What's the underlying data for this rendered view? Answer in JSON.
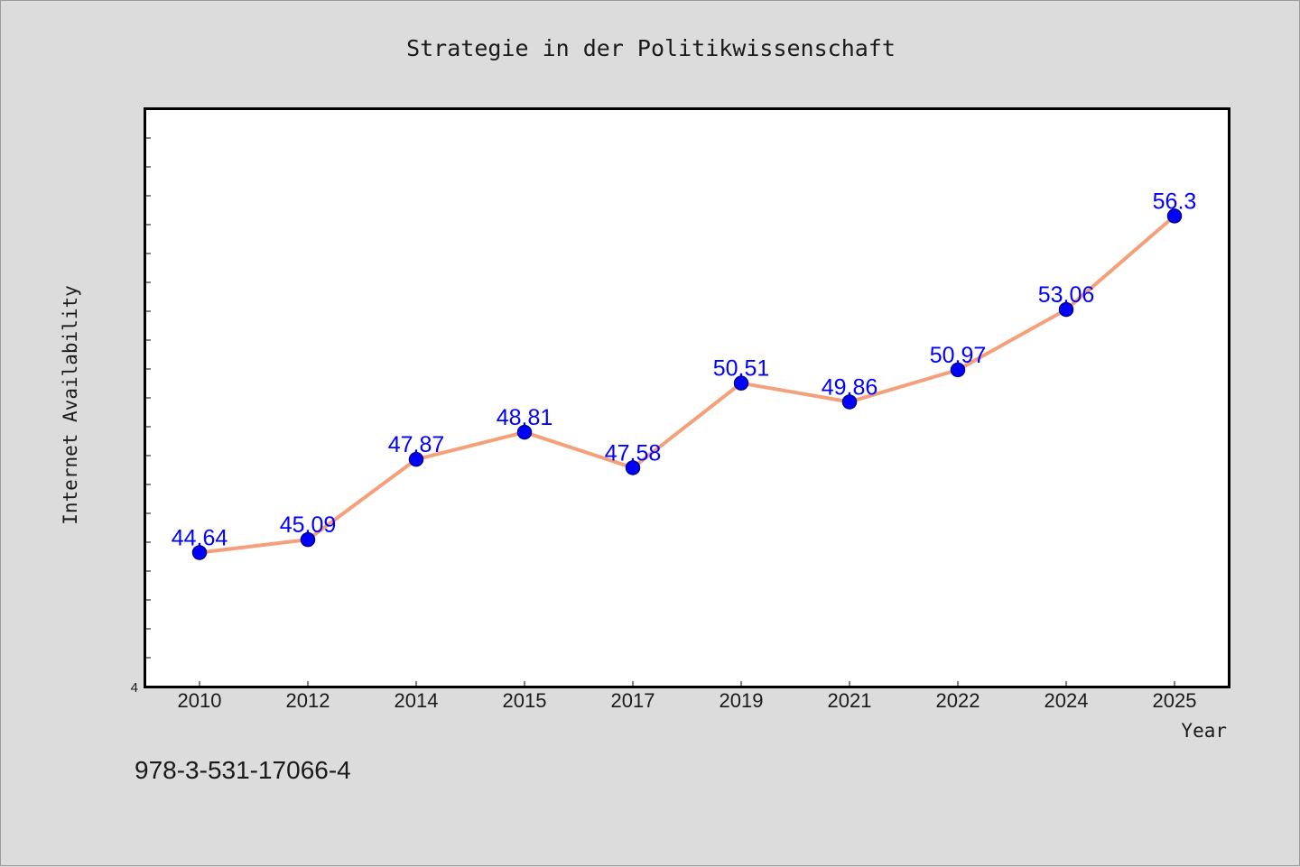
{
  "chart_data": {
    "type": "line",
    "title": "Strategie in der Politikwissenschaft",
    "xlabel": "Year",
    "ylabel": "Internet Availability",
    "categories": [
      "2010",
      "2012",
      "2014",
      "2015",
      "2017",
      "2019",
      "2021",
      "2022",
      "2024",
      "2025"
    ],
    "series": [
      {
        "values": [
          44.64,
          45.09,
          47.87,
          48.81,
          47.58,
          50.51,
          49.86,
          50.97,
          53.06,
          56.3
        ],
        "data_labels": [
          "44.64",
          "45.09",
          "47.87",
          "48.81",
          "47.58",
          "50.51",
          "49.86",
          "50.97",
          "53.06",
          "56.3"
        ]
      }
    ],
    "ylim": [
      40,
      60
    ],
    "ytick_labels": [
      "4"
    ],
    "grid": false,
    "colors": {
      "line": "#f4a07a",
      "marker": "#0000ff",
      "label": "#0000ff",
      "plot_bg": "#ffffff",
      "page_bg": "#dcdcdc"
    }
  },
  "footer": {
    "isbn": "978-3-531-17066-4"
  }
}
